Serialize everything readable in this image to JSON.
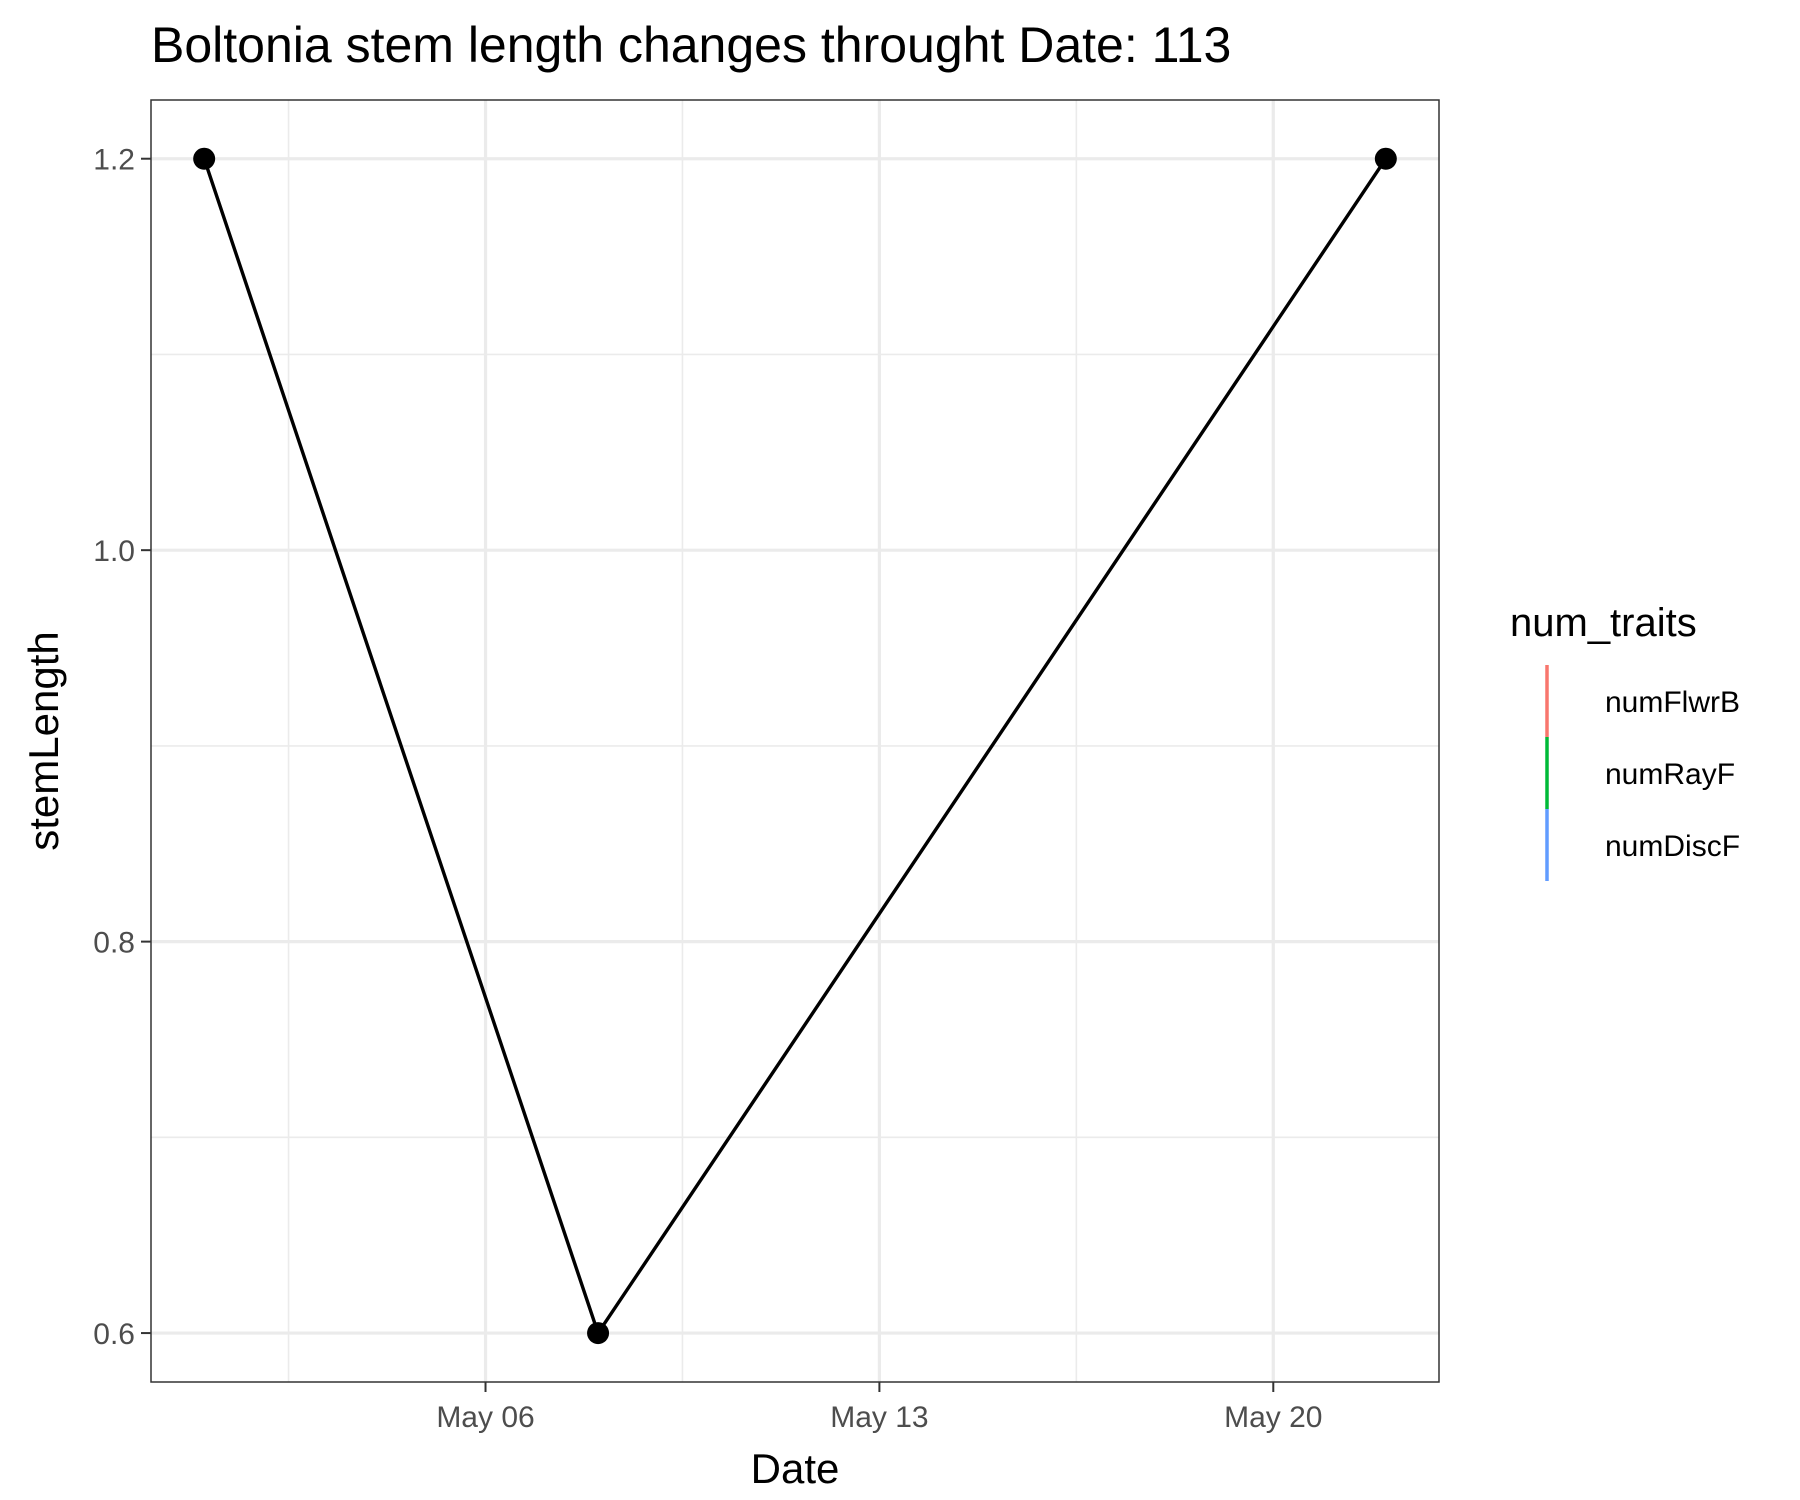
{
  "chart_data": {
    "type": "line",
    "title": "Boltonia stem length changes throught Date:  113",
    "xlabel": "Date",
    "ylabel": "stemLength",
    "x_tick_labels": [
      "May 06",
      "May 13",
      "May 20"
    ],
    "y_tick_labels": [
      "0.6",
      "0.8",
      "1.0",
      "1.2"
    ],
    "ylim": [
      0.575,
      1.23
    ],
    "series": [
      {
        "x": [
          "2024-05-01",
          "2024-05-08",
          "2024-05-22"
        ],
        "values": [
          1.2,
          0.6,
          1.2
        ],
        "color": "#000000"
      }
    ],
    "grid": true,
    "legend": {
      "title": "num_traits",
      "position": "right",
      "entries": [
        {
          "label": "numFlwrB",
          "color": "#F8766D"
        },
        {
          "label": "numRayF",
          "color": "#00BA38"
        },
        {
          "label": "numDiscF",
          "color": "#619CFF"
        }
      ]
    }
  }
}
